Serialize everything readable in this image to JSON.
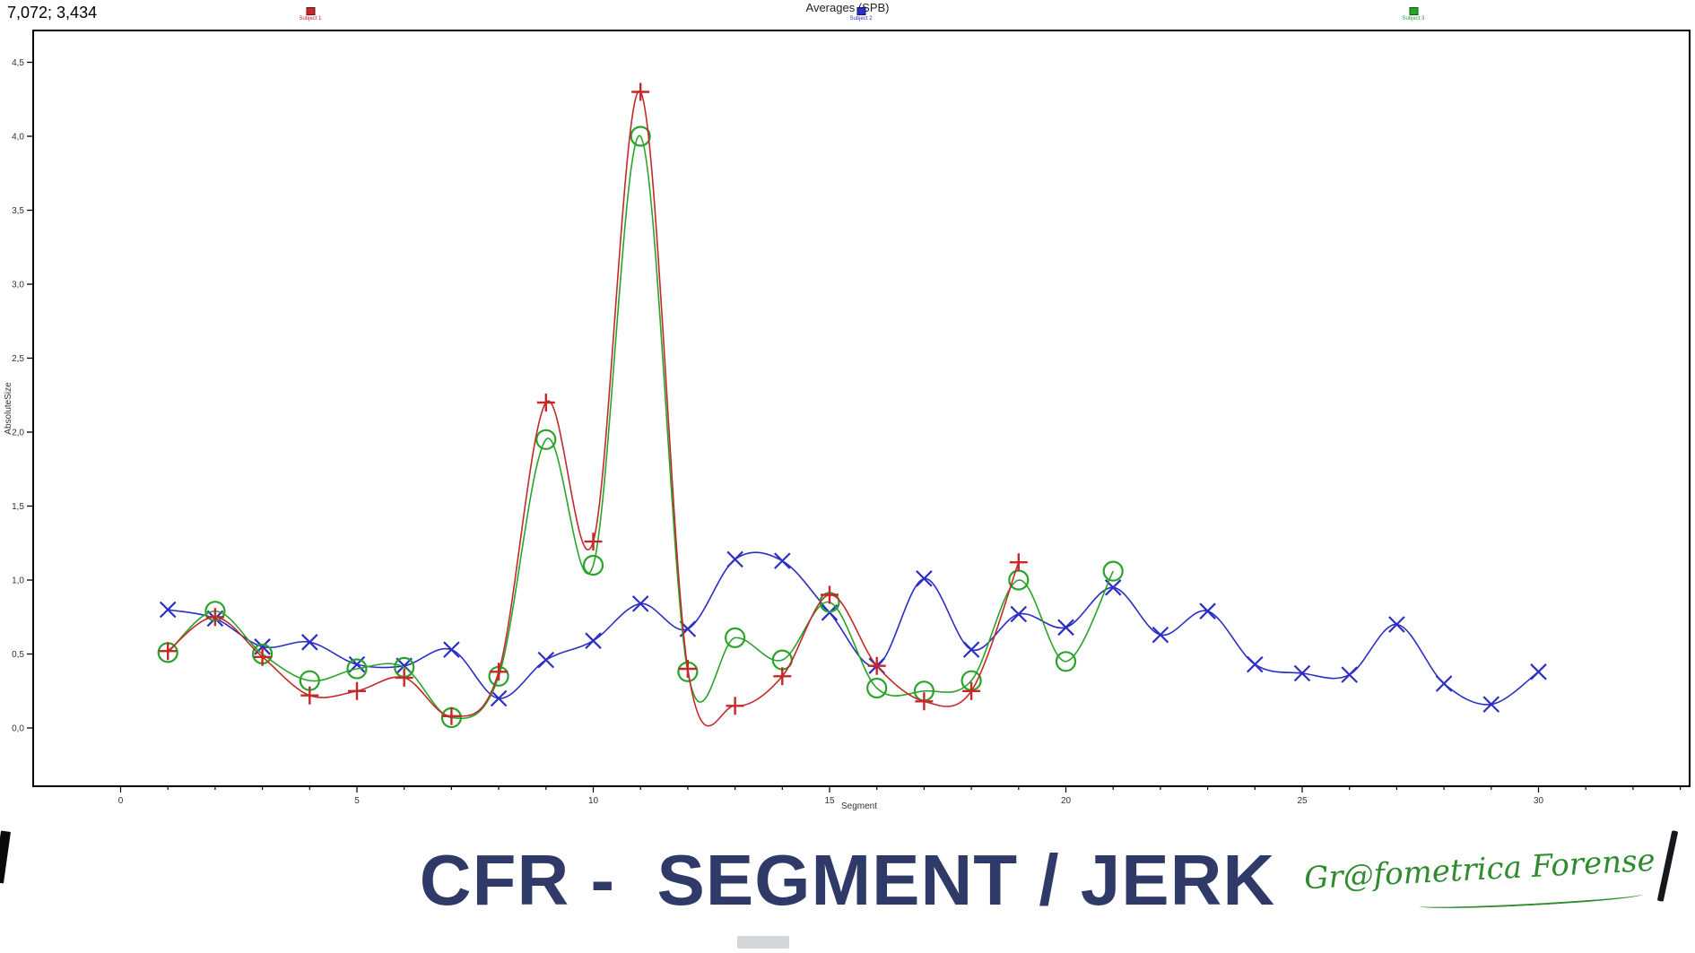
{
  "header": {
    "coordinates": "7,072; 3,434",
    "title": "Averages (SPB)"
  },
  "legend": [
    {
      "label": "Subject 1",
      "color": "#c42828",
      "marker": "plus"
    },
    {
      "label": "Subject 2",
      "color": "#2a2ec4",
      "marker": "x"
    },
    {
      "label": "Subject 3",
      "color": "#2aa32a",
      "marker": "circle"
    }
  ],
  "chart_data": {
    "type": "line",
    "title": "Averages (SPB)",
    "xlabel": "Segment",
    "ylabel": "AbsoluteSize",
    "x_ticks": [
      0,
      5,
      10,
      15,
      20,
      25,
      30
    ],
    "y_tick_labels": [
      "0,0",
      "0,5",
      "1,0",
      "1,5",
      "2,0",
      "2,5",
      "3,0",
      "3,5",
      "4,0",
      "4,5"
    ],
    "y_tick_values": [
      0,
      0.5,
      1,
      1.5,
      2,
      2.5,
      3,
      3.5,
      4,
      4.5
    ],
    "xlim": [
      -1.85,
      33.2
    ],
    "ylim": [
      -0.39,
      4.71
    ],
    "grid": false,
    "legend_position": "top",
    "series": [
      {
        "name": "Subject 1",
        "color": "#c42828",
        "marker": "plus",
        "x_start": 1,
        "values": [
          0.52,
          0.75,
          0.48,
          0.22,
          0.25,
          0.34,
          0.08,
          0.38,
          2.2,
          1.26,
          4.3,
          0.4,
          0.15,
          0.35,
          0.9,
          0.42,
          0.18,
          0.25,
          1.12
        ]
      },
      {
        "name": "Subject 2",
        "color": "#2a2ec4",
        "marker": "x",
        "x_start": 1,
        "values": [
          0.8,
          0.74,
          0.55,
          0.58,
          0.43,
          0.42,
          0.53,
          0.2,
          0.46,
          0.59,
          0.84,
          0.67,
          1.14,
          1.13,
          0.78,
          0.42,
          1.01,
          0.53,
          0.77,
          0.68,
          0.95,
          0.63,
          0.79,
          0.43,
          0.37,
          0.36,
          0.7,
          0.3,
          0.16,
          0.38
        ]
      },
      {
        "name": "Subject 3",
        "color": "#2aa32a",
        "marker": "circle",
        "x_start": 1,
        "values": [
          0.51,
          0.79,
          0.5,
          0.32,
          0.4,
          0.41,
          0.07,
          0.35,
          1.95,
          1.1,
          4.0,
          0.38,
          0.61,
          0.46,
          0.85,
          0.27,
          0.25,
          0.32,
          1.0,
          0.45,
          1.06
        ]
      }
    ]
  },
  "footer": {
    "title": "CFR -  SEGMENT / JERK",
    "logo": "Gr@fometrica Forense"
  }
}
